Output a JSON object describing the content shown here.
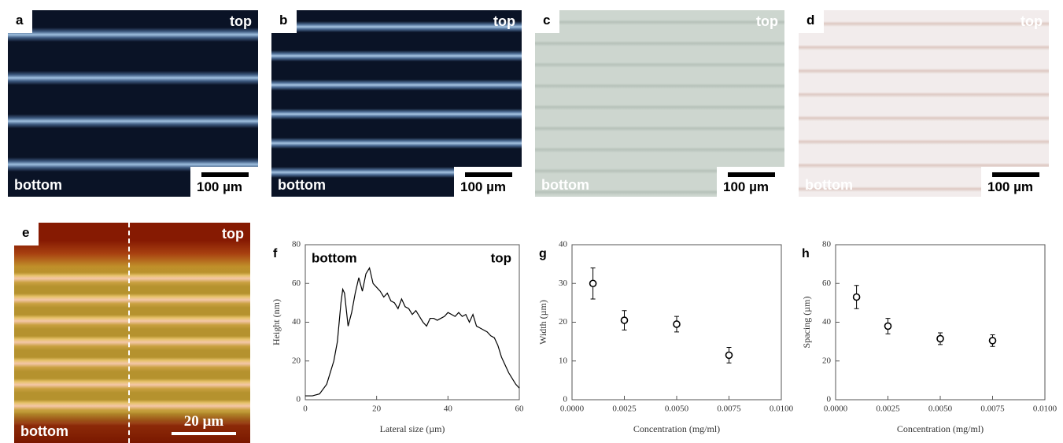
{
  "panels": [
    {
      "label": "a",
      "top": "top",
      "bottom": "bottom",
      "scale": "100 µm"
    },
    {
      "label": "b",
      "top": "top",
      "bottom": "bottom",
      "scale": "100 µm"
    },
    {
      "label": "c",
      "top": "top",
      "bottom": "bottom",
      "scale": "100 µm"
    },
    {
      "label": "d",
      "top": "top",
      "bottom": "bottom",
      "scale": "100 µm"
    },
    {
      "label": "e",
      "top": "top",
      "bottom": "bottom",
      "scale": "20 µm"
    }
  ],
  "chart_data": [
    {
      "type": "line",
      "panel_label": "f",
      "xlabel": "Lateral size (µm)",
      "ylabel": "Height (nm)",
      "annotations": [
        "bottom",
        "top"
      ],
      "color": "#000000",
      "x": [
        0,
        2,
        4,
        6,
        8,
        9,
        10,
        10.5,
        11,
        12,
        13,
        14,
        15,
        16,
        17,
        18,
        19,
        20,
        21,
        22,
        23,
        24,
        25,
        26,
        27,
        28,
        29,
        30,
        31,
        32,
        33,
        34,
        35,
        36,
        37,
        38,
        39,
        40,
        41,
        42,
        43,
        44,
        45,
        46,
        47,
        48,
        49,
        50,
        51,
        52,
        53,
        54,
        55,
        56,
        57,
        58,
        59,
        60
      ],
      "y": [
        2,
        2,
        3,
        8,
        20,
        30,
        50,
        57,
        55,
        38,
        45,
        55,
        63,
        56,
        65,
        68,
        60,
        58,
        56,
        53,
        55,
        51,
        50,
        47,
        52,
        48,
        47,
        44,
        46,
        43,
        40,
        38,
        42,
        42,
        41,
        42,
        43,
        45,
        44,
        43,
        45,
        43,
        44,
        40,
        44,
        38,
        37,
        36,
        35,
        33,
        32,
        28,
        22,
        18,
        14,
        11,
        8,
        6
      ],
      "xlim": [
        0,
        60
      ],
      "xticks": [
        0,
        20,
        40,
        60
      ],
      "ylim": [
        0,
        80
      ],
      "yticks": [
        0,
        20,
        40,
        60,
        80
      ]
    },
    {
      "type": "scatter",
      "panel_label": "g",
      "xlabel": "Concentration (mg/ml)",
      "ylabel": "Width (µm)",
      "color": "#000000",
      "x": [
        0.001,
        0.0025,
        0.005,
        0.0075
      ],
      "values": [
        30,
        20.5,
        19.5,
        11.5
      ],
      "errors": [
        4,
        2.5,
        2,
        2
      ],
      "xlim": [
        0,
        0.01
      ],
      "xticks": [
        {
          "value": 0,
          "label": "0.0000"
        },
        {
          "value": 0.0025,
          "label": "0.0025"
        },
        {
          "value": 0.005,
          "label": "0.0050"
        },
        {
          "value": 0.0075,
          "label": "0.0075"
        },
        {
          "value": 0.01,
          "label": "0.0100"
        }
      ],
      "ylim": [
        0,
        40
      ],
      "yticks": [
        0,
        10,
        20,
        30,
        40
      ]
    },
    {
      "type": "scatter",
      "panel_label": "h",
      "xlabel": "Concentration (mg/ml)",
      "ylabel": "Spacing (µm)",
      "color": "#000000",
      "x": [
        0.001,
        0.0025,
        0.005,
        0.0075
      ],
      "values": [
        53,
        38,
        31.5,
        30.5
      ],
      "errors": [
        6,
        4,
        3,
        3
      ],
      "xlim": [
        0,
        0.01
      ],
      "xticks": [
        {
          "value": 0,
          "label": "0.0000"
        },
        {
          "value": 0.0025,
          "label": "0.0025"
        },
        {
          "value": 0.005,
          "label": "0.0050"
        },
        {
          "value": 0.0075,
          "label": "0.0075"
        },
        {
          "value": 0.01,
          "label": "0.0100"
        }
      ],
      "ylim": [
        0,
        80
      ],
      "yticks": [
        0,
        20,
        40,
        60,
        80
      ]
    }
  ]
}
